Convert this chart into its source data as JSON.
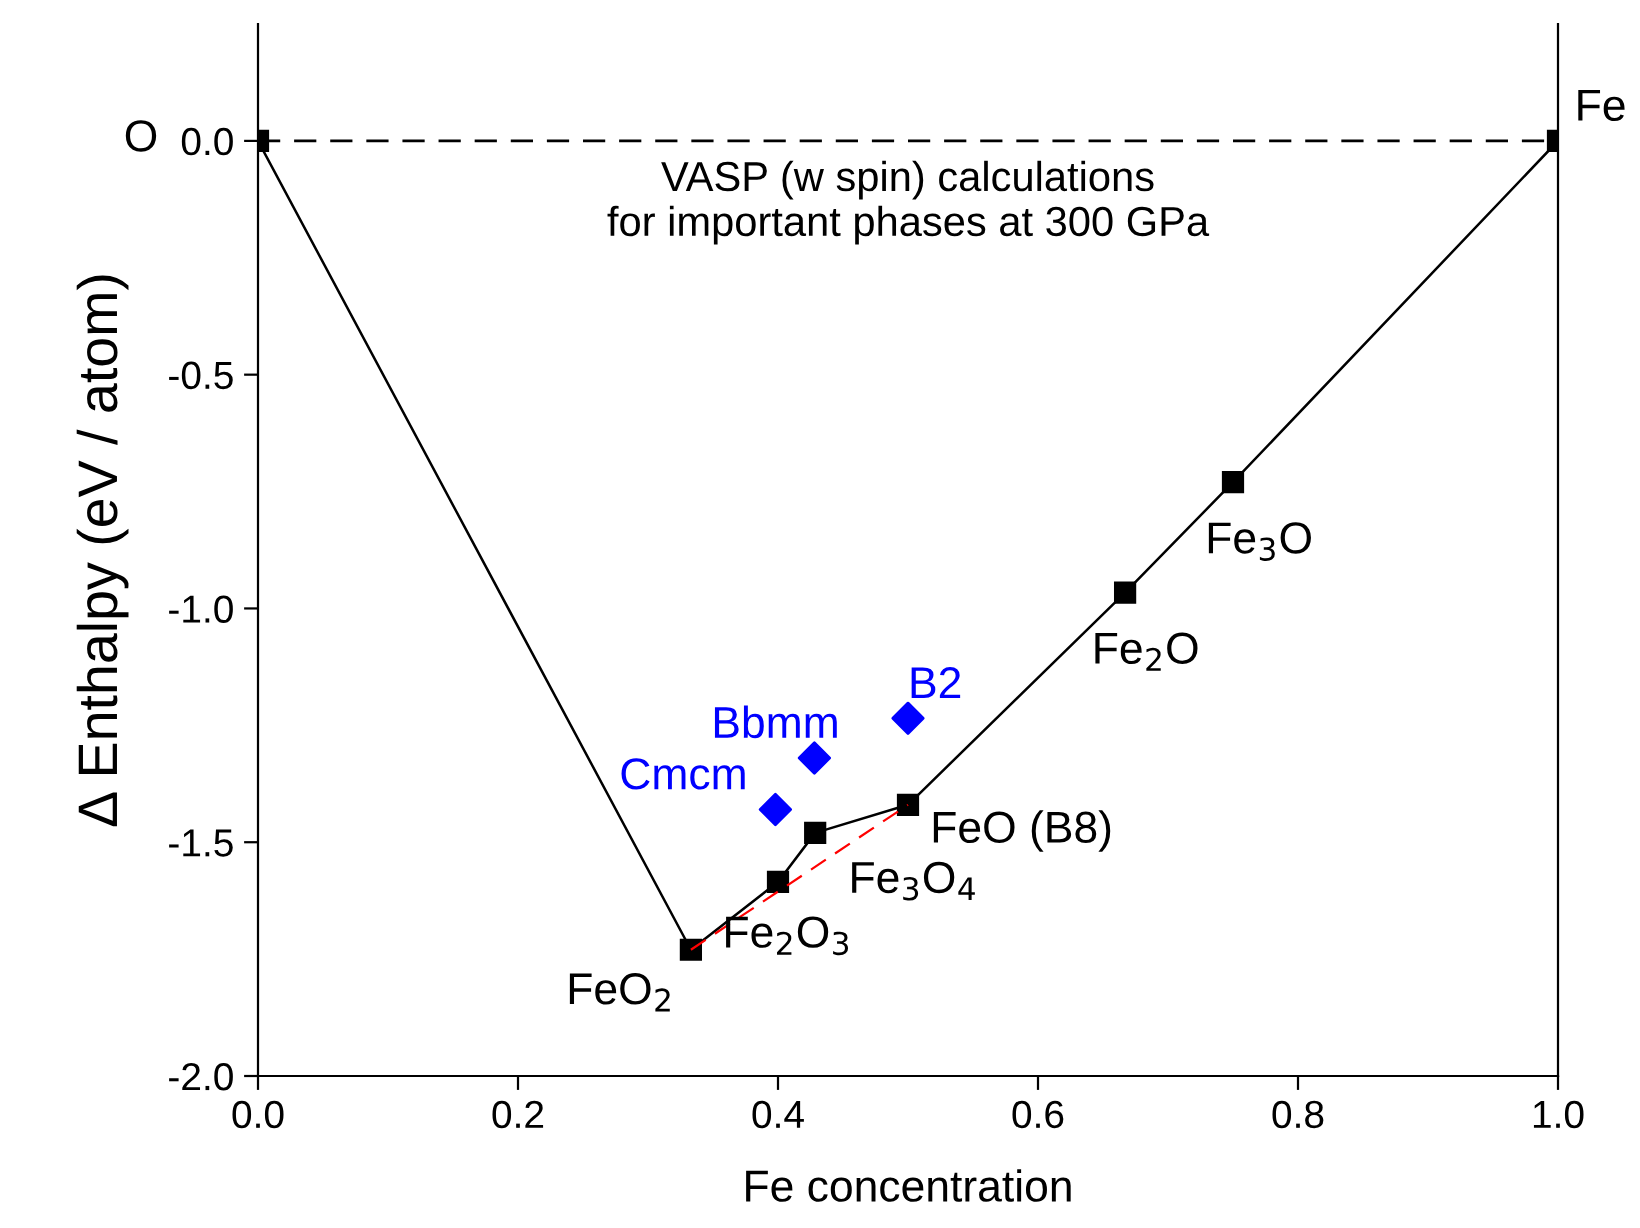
{
  "chart_data": {
    "type": "line",
    "xlabel": "Fe concentration",
    "ylabel": "Δ Enthalpy (eV / atom)",
    "xlim": [
      0,
      1
    ],
    "ylim": [
      -2.0,
      0.25
    ],
    "xticks": [
      {
        "value": 0,
        "label": "0.0"
      },
      {
        "value": 0.2,
        "label": "0.2"
      },
      {
        "value": 0.4,
        "label": "0.4"
      },
      {
        "value": 0.6,
        "label": "0.6"
      },
      {
        "value": 0.8,
        "label": "0.8"
      },
      {
        "value": 1.0,
        "label": "1.0"
      }
    ],
    "yticks": [
      {
        "value": -2.0,
        "label": "-2.0"
      },
      {
        "value": -1.5,
        "label": "-1.5"
      },
      {
        "value": -1.0,
        "label": "-1.0"
      },
      {
        "value": -0.5,
        "label": "-0.5"
      },
      {
        "value": 0,
        "label": "0.0"
      }
    ],
    "grid": false,
    "series": [
      {
        "color": "#000000",
        "marker": "square",
        "line_style": "solid",
        "x": [
          0,
          0.333,
          0.4,
          0.4286,
          0.5,
          0.667,
          0.75,
          1.0
        ],
        "values": [
          0,
          -1.73,
          -1.585,
          -1.48,
          -1.42,
          -0.966,
          -0.73,
          0
        ]
      },
      {
        "color": "#ff0000",
        "marker": "none",
        "line_style": "dashed",
        "x": [
          0.333,
          0.5
        ],
        "values": [
          -1.73,
          -1.42
        ]
      },
      {
        "type": "scatter",
        "color": "#0000ff",
        "marker": "diamond",
        "x": [
          0.398,
          0.428,
          0.5
        ],
        "values": [
          -1.43,
          -1.32,
          -1.235
        ]
      }
    ],
    "ref_lines": [
      {
        "axis": "y",
        "value": 0,
        "color": "#000000",
        "line_style": "dashed"
      }
    ],
    "annotations": [
      "VASP (w spin) calculations\nfor important phases at 300 GPa",
      "O",
      {
        "text": "Fe",
        "x": 1.0,
        "y": 0
      },
      {
        "text": "FeO$_{2}$",
        "x": 0.333,
        "y": -1.73
      },
      {
        "text": "Fe$_{2}$O$_{3}$",
        "x": 0.4,
        "y": -1.585
      },
      {
        "text": "Fe$_{3}$O$_{4}$",
        "x": 0.4286,
        "y": -1.48
      },
      {
        "text": "FeO (B8)",
        "x": 0.5,
        "y": -1.42
      },
      {
        "text": "Fe$_{2}$O",
        "x": 0.667,
        "y": -0.966
      },
      {
        "text": "Fe$_{3}$O",
        "x": 0.75,
        "y": -0.73
      },
      {
        "text": "Cmcm",
        "x": 0.398,
        "y": -1.43
      },
      {
        "text": "Bbmm",
        "x": 0.428,
        "y": -1.32
      },
      {
        "text": "B2",
        "x": 0.5,
        "y": -1.235
      }
    ]
  }
}
